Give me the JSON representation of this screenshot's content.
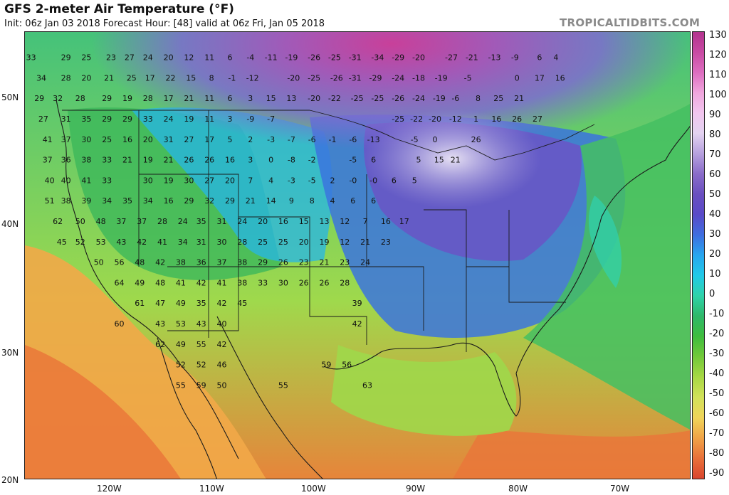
{
  "title": "GFS 2-meter Air Temperature (°F)",
  "subtitle": "Init: 06z Jan 03 2018   Forecast Hour: [48]   valid at 06z Fri, Jan 05 2018",
  "brand": "TROPICALTIDBITS.COM",
  "lat_labels": [
    "50N",
    "40N",
    "30N",
    "20N"
  ],
  "lon_labels": [
    "120W",
    "110W",
    "100W",
    "90W",
    "80W",
    "70W"
  ],
  "colorbar": {
    "labels": [
      "130",
      "120",
      "110",
      "100",
      "90",
      "80",
      "70",
      "60",
      "50",
      "40",
      "30",
      "20",
      "10",
      "0",
      "-10",
      "-20",
      "-30",
      "-40",
      "-50",
      "-60",
      "-70",
      "-80",
      "-90"
    ],
    "colors": [
      "#b3338e",
      "#c84aa3",
      "#dd6ec0",
      "#f0a6dd",
      "#f2c6ef",
      "#e3d2f0",
      "#b6a0de",
      "#8a6cc9",
      "#6a4fc0",
      "#5a4ac8",
      "#3e6ee0",
      "#27a6ef",
      "#21c9e8",
      "#2fd2a9",
      "#2fb86a",
      "#3fbd3e",
      "#72c93a",
      "#a8d844",
      "#d2e15a",
      "#f0d45a",
      "#f0a347",
      "#e8703a",
      "#d9452e"
    ]
  },
  "temperatures": [
    {
      "v": "33",
      "lon": -127.4,
      "lat": 52.8
    },
    {
      "v": "29",
      "lon": -124.0,
      "lat": 52.8
    },
    {
      "v": "25",
      "lon": -122.0,
      "lat": 52.8
    },
    {
      "v": "23",
      "lon": -119.6,
      "lat": 52.8
    },
    {
      "v": "27",
      "lon": -117.8,
      "lat": 52.8
    },
    {
      "v": "24",
      "lon": -116.0,
      "lat": 52.8
    },
    {
      "v": "20",
      "lon": -114.0,
      "lat": 52.8
    },
    {
      "v": "12",
      "lon": -112.0,
      "lat": 52.8
    },
    {
      "v": "11",
      "lon": -110.0,
      "lat": 52.8
    },
    {
      "v": "6",
      "lon": -108.0,
      "lat": 52.8
    },
    {
      "v": "-4",
      "lon": -106.0,
      "lat": 52.8
    },
    {
      "v": "-11",
      "lon": -104.0,
      "lat": 52.8
    },
    {
      "v": "-19",
      "lon": -102.0,
      "lat": 52.8
    },
    {
      "v": "-26",
      "lon": -99.8,
      "lat": 52.8
    },
    {
      "v": "-25",
      "lon": -97.8,
      "lat": 52.8
    },
    {
      "v": "-31",
      "lon": -95.8,
      "lat": 52.8
    },
    {
      "v": "-34",
      "lon": -93.6,
      "lat": 52.8
    },
    {
      "v": "-29",
      "lon": -91.6,
      "lat": 52.8
    },
    {
      "v": "-20",
      "lon": -89.6,
      "lat": 52.8
    },
    {
      "v": "-27",
      "lon": -86.4,
      "lat": 52.8
    },
    {
      "v": "-21",
      "lon": -84.4,
      "lat": 52.8
    },
    {
      "v": "-13",
      "lon": -82.2,
      "lat": 52.8
    },
    {
      "v": "-9",
      "lon": -80.2,
      "lat": 52.8
    },
    {
      "v": "6",
      "lon": -77.8,
      "lat": 52.8
    },
    {
      "v": "4",
      "lon": -76.2,
      "lat": 52.8
    },
    {
      "v": "34",
      "lon": -126.4,
      "lat": 51.2
    },
    {
      "v": "28",
      "lon": -124.0,
      "lat": 51.2
    },
    {
      "v": "20",
      "lon": -122.0,
      "lat": 51.2
    },
    {
      "v": "21",
      "lon": -119.8,
      "lat": 51.2
    },
    {
      "v": "25",
      "lon": -117.6,
      "lat": 51.2
    },
    {
      "v": "17",
      "lon": -115.8,
      "lat": 51.2
    },
    {
      "v": "22",
      "lon": -113.8,
      "lat": 51.2
    },
    {
      "v": "15",
      "lon": -111.8,
      "lat": 51.2
    },
    {
      "v": "8",
      "lon": -109.8,
      "lat": 51.2
    },
    {
      "v": "-1",
      "lon": -107.8,
      "lat": 51.2
    },
    {
      "v": "-12",
      "lon": -105.8,
      "lat": 51.2
    },
    {
      "v": "-20",
      "lon": -101.8,
      "lat": 51.2
    },
    {
      "v": "-25",
      "lon": -99.8,
      "lat": 51.2
    },
    {
      "v": "-26",
      "lon": -97.6,
      "lat": 51.2
    },
    {
      "v": "-31",
      "lon": -95.8,
      "lat": 51.2
    },
    {
      "v": "-29",
      "lon": -93.8,
      "lat": 51.2
    },
    {
      "v": "-24",
      "lon": -91.6,
      "lat": 51.2
    },
    {
      "v": "-18",
      "lon": -89.6,
      "lat": 51.2
    },
    {
      "v": "-19",
      "lon": -87.4,
      "lat": 51.2
    },
    {
      "v": "-5",
      "lon": -84.8,
      "lat": 51.2
    },
    {
      "v": "0",
      "lon": -80.0,
      "lat": 51.2
    },
    {
      "v": "17",
      "lon": -77.8,
      "lat": 51.2
    },
    {
      "v": "16",
      "lon": -75.8,
      "lat": 51.2
    },
    {
      "v": "29",
      "lon": -126.6,
      "lat": 49.6
    },
    {
      "v": "32",
      "lon": -124.8,
      "lat": 49.6
    },
    {
      "v": "28",
      "lon": -122.6,
      "lat": 49.6
    },
    {
      "v": "29",
      "lon": -120.0,
      "lat": 49.6
    },
    {
      "v": "19",
      "lon": -118.0,
      "lat": 49.6
    },
    {
      "v": "28",
      "lon": -116.0,
      "lat": 49.6
    },
    {
      "v": "17",
      "lon": -114.0,
      "lat": 49.6
    },
    {
      "v": "21",
      "lon": -112.0,
      "lat": 49.6
    },
    {
      "v": "11",
      "lon": -110.0,
      "lat": 49.6
    },
    {
      "v": "6",
      "lon": -108.0,
      "lat": 49.6
    },
    {
      "v": "3",
      "lon": -106.0,
      "lat": 49.6
    },
    {
      "v": "15",
      "lon": -104.0,
      "lat": 49.6
    },
    {
      "v": "13",
      "lon": -102.0,
      "lat": 49.6
    },
    {
      "v": "-20",
      "lon": -99.8,
      "lat": 49.6
    },
    {
      "v": "-22",
      "lon": -97.8,
      "lat": 49.6
    },
    {
      "v": "-25",
      "lon": -95.6,
      "lat": 49.6
    },
    {
      "v": "-25",
      "lon": -93.6,
      "lat": 49.6
    },
    {
      "v": "-26",
      "lon": -91.6,
      "lat": 49.6
    },
    {
      "v": "-24",
      "lon": -89.6,
      "lat": 49.6
    },
    {
      "v": "-19",
      "lon": -87.6,
      "lat": 49.6
    },
    {
      "v": "-6",
      "lon": -86.0,
      "lat": 49.6
    },
    {
      "v": "8",
      "lon": -83.8,
      "lat": 49.6
    },
    {
      "v": "25",
      "lon": -81.8,
      "lat": 49.6
    },
    {
      "v": "21",
      "lon": -79.8,
      "lat": 49.6
    },
    {
      "v": "27",
      "lon": -126.2,
      "lat": 48.0
    },
    {
      "v": "31",
      "lon": -124.0,
      "lat": 48.0
    },
    {
      "v": "35",
      "lon": -122.0,
      "lat": 48.0
    },
    {
      "v": "29",
      "lon": -120.0,
      "lat": 48.0
    },
    {
      "v": "29",
      "lon": -118.0,
      "lat": 48.0
    },
    {
      "v": "33",
      "lon": -116.0,
      "lat": 48.0
    },
    {
      "v": "24",
      "lon": -114.0,
      "lat": 48.0
    },
    {
      "v": "19",
      "lon": -112.0,
      "lat": 48.0
    },
    {
      "v": "11",
      "lon": -110.0,
      "lat": 48.0
    },
    {
      "v": "3",
      "lon": -108.0,
      "lat": 48.0
    },
    {
      "v": "-9",
      "lon": -106.0,
      "lat": 48.0
    },
    {
      "v": "-7",
      "lon": -104.0,
      "lat": 48.0
    },
    {
      "v": "-25",
      "lon": -91.6,
      "lat": 48.0
    },
    {
      "v": "-22",
      "lon": -89.8,
      "lat": 48.0
    },
    {
      "v": "-20",
      "lon": -88.0,
      "lat": 48.0
    },
    {
      "v": "-12",
      "lon": -86.0,
      "lat": 48.0
    },
    {
      "v": "1",
      "lon": -84.0,
      "lat": 48.0
    },
    {
      "v": "16",
      "lon": -82.0,
      "lat": 48.0
    },
    {
      "v": "26",
      "lon": -80.0,
      "lat": 48.0
    },
    {
      "v": "27",
      "lon": -78.0,
      "lat": 48.0
    },
    {
      "v": "41",
      "lon": -125.8,
      "lat": 46.4
    },
    {
      "v": "37",
      "lon": -124.0,
      "lat": 46.4
    },
    {
      "v": "30",
      "lon": -122.0,
      "lat": 46.4
    },
    {
      "v": "25",
      "lon": -120.0,
      "lat": 46.4
    },
    {
      "v": "16",
      "lon": -118.0,
      "lat": 46.4
    },
    {
      "v": "20",
      "lon": -116.0,
      "lat": 46.4
    },
    {
      "v": "31",
      "lon": -114.0,
      "lat": 46.4
    },
    {
      "v": "27",
      "lon": -112.0,
      "lat": 46.4
    },
    {
      "v": "17",
      "lon": -110.0,
      "lat": 46.4
    },
    {
      "v": "5",
      "lon": -108.0,
      "lat": 46.4
    },
    {
      "v": "2",
      "lon": -106.0,
      "lat": 46.4
    },
    {
      "v": "-3",
      "lon": -104.0,
      "lat": 46.4
    },
    {
      "v": "-7",
      "lon": -102.0,
      "lat": 46.4
    },
    {
      "v": "-6",
      "lon": -100.0,
      "lat": 46.4
    },
    {
      "v": "-1",
      "lon": -98.0,
      "lat": 46.4
    },
    {
      "v": "-6",
      "lon": -96.0,
      "lat": 46.4
    },
    {
      "v": "-13",
      "lon": -94.0,
      "lat": 46.4
    },
    {
      "v": "-5",
      "lon": -90.0,
      "lat": 46.4
    },
    {
      "v": "0",
      "lon": -88.0,
      "lat": 46.4
    },
    {
      "v": "26",
      "lon": -84.0,
      "lat": 46.4
    },
    {
      "v": "37",
      "lon": -125.8,
      "lat": 44.8
    },
    {
      "v": "36",
      "lon": -124.0,
      "lat": 44.8
    },
    {
      "v": "38",
      "lon": -122.0,
      "lat": 44.8
    },
    {
      "v": "33",
      "lon": -120.0,
      "lat": 44.8
    },
    {
      "v": "21",
      "lon": -118.0,
      "lat": 44.8
    },
    {
      "v": "19",
      "lon": -116.0,
      "lat": 44.8
    },
    {
      "v": "21",
      "lon": -114.0,
      "lat": 44.8
    },
    {
      "v": "26",
      "lon": -112.0,
      "lat": 44.8
    },
    {
      "v": "26",
      "lon": -110.0,
      "lat": 44.8
    },
    {
      "v": "16",
      "lon": -108.0,
      "lat": 44.8
    },
    {
      "v": "3",
      "lon": -106.0,
      "lat": 44.8
    },
    {
      "v": "0",
      "lon": -104.0,
      "lat": 44.8
    },
    {
      "v": "-8",
      "lon": -102.0,
      "lat": 44.8
    },
    {
      "v": "-2",
      "lon": -100.0,
      "lat": 44.8
    },
    {
      "v": "-5",
      "lon": -96.0,
      "lat": 44.8
    },
    {
      "v": "6",
      "lon": -94.0,
      "lat": 44.8
    },
    {
      "v": "5",
      "lon": -89.6,
      "lat": 44.8
    },
    {
      "v": "15",
      "lon": -87.6,
      "lat": 44.8
    },
    {
      "v": "21",
      "lon": -86.0,
      "lat": 44.8
    },
    {
      "v": "40",
      "lon": -125.6,
      "lat": 43.2
    },
    {
      "v": "40",
      "lon": -124.0,
      "lat": 43.2
    },
    {
      "v": "41",
      "lon": -122.0,
      "lat": 43.2
    },
    {
      "v": "33",
      "lon": -120.0,
      "lat": 43.2
    },
    {
      "v": "30",
      "lon": -116.0,
      "lat": 43.2
    },
    {
      "v": "19",
      "lon": -114.0,
      "lat": 43.2
    },
    {
      "v": "30",
      "lon": -112.0,
      "lat": 43.2
    },
    {
      "v": "27",
      "lon": -110.0,
      "lat": 43.2
    },
    {
      "v": "20",
      "lon": -108.0,
      "lat": 43.2
    },
    {
      "v": "7",
      "lon": -106.0,
      "lat": 43.2
    },
    {
      "v": "4",
      "lon": -104.0,
      "lat": 43.2
    },
    {
      "v": "-3",
      "lon": -102.0,
      "lat": 43.2
    },
    {
      "v": "-5",
      "lon": -100.0,
      "lat": 43.2
    },
    {
      "v": "2",
      "lon": -98.0,
      "lat": 43.2
    },
    {
      "v": "-0",
      "lon": -96.0,
      "lat": 43.2
    },
    {
      "v": "-0",
      "lon": -94.0,
      "lat": 43.2
    },
    {
      "v": "6",
      "lon": -92.0,
      "lat": 43.2
    },
    {
      "v": "5",
      "lon": -90.0,
      "lat": 43.2
    },
    {
      "v": "51",
      "lon": -125.6,
      "lat": 41.6
    },
    {
      "v": "38",
      "lon": -124.0,
      "lat": 41.6
    },
    {
      "v": "39",
      "lon": -122.0,
      "lat": 41.6
    },
    {
      "v": "34",
      "lon": -120.0,
      "lat": 41.6
    },
    {
      "v": "35",
      "lon": -118.0,
      "lat": 41.6
    },
    {
      "v": "34",
      "lon": -116.0,
      "lat": 41.6
    },
    {
      "v": "16",
      "lon": -114.0,
      "lat": 41.6
    },
    {
      "v": "29",
      "lon": -112.0,
      "lat": 41.6
    },
    {
      "v": "32",
      "lon": -110.0,
      "lat": 41.6
    },
    {
      "v": "29",
      "lon": -108.0,
      "lat": 41.6
    },
    {
      "v": "21",
      "lon": -106.0,
      "lat": 41.6
    },
    {
      "v": "14",
      "lon": -104.0,
      "lat": 41.6
    },
    {
      "v": "9",
      "lon": -102.0,
      "lat": 41.6
    },
    {
      "v": "8",
      "lon": -100.0,
      "lat": 41.6
    },
    {
      "v": "4",
      "lon": -98.0,
      "lat": 41.6
    },
    {
      "v": "6",
      "lon": -96.0,
      "lat": 41.6
    },
    {
      "v": "6",
      "lon": -94.0,
      "lat": 41.6
    },
    {
      "v": "62",
      "lon": -124.8,
      "lat": 40.0
    },
    {
      "v": "50",
      "lon": -122.6,
      "lat": 40.0
    },
    {
      "v": "48",
      "lon": -120.6,
      "lat": 40.0
    },
    {
      "v": "37",
      "lon": -118.6,
      "lat": 40.0
    },
    {
      "v": "37",
      "lon": -116.6,
      "lat": 40.0
    },
    {
      "v": "28",
      "lon": -114.6,
      "lat": 40.0
    },
    {
      "v": "24",
      "lon": -112.6,
      "lat": 40.0
    },
    {
      "v": "35",
      "lon": -110.8,
      "lat": 40.0
    },
    {
      "v": "31",
      "lon": -108.8,
      "lat": 40.0
    },
    {
      "v": "24",
      "lon": -106.8,
      "lat": 40.0
    },
    {
      "v": "20",
      "lon": -104.8,
      "lat": 40.0
    },
    {
      "v": "16",
      "lon": -102.8,
      "lat": 40.0
    },
    {
      "v": "15",
      "lon": -100.8,
      "lat": 40.0
    },
    {
      "v": "13",
      "lon": -98.8,
      "lat": 40.0
    },
    {
      "v": "12",
      "lon": -96.8,
      "lat": 40.0
    },
    {
      "v": "7",
      "lon": -94.8,
      "lat": 40.0
    },
    {
      "v": "16",
      "lon": -92.8,
      "lat": 40.0
    },
    {
      "v": "17",
      "lon": -91.0,
      "lat": 40.0
    },
    {
      "v": "45",
      "lon": -124.4,
      "lat": 38.4
    },
    {
      "v": "52",
      "lon": -122.6,
      "lat": 38.4
    },
    {
      "v": "53",
      "lon": -120.6,
      "lat": 38.4
    },
    {
      "v": "43",
      "lon": -118.6,
      "lat": 38.4
    },
    {
      "v": "42",
      "lon": -116.6,
      "lat": 38.4
    },
    {
      "v": "41",
      "lon": -114.6,
      "lat": 38.4
    },
    {
      "v": "34",
      "lon": -112.6,
      "lat": 38.4
    },
    {
      "v": "31",
      "lon": -110.8,
      "lat": 38.4
    },
    {
      "v": "30",
      "lon": -108.8,
      "lat": 38.4
    },
    {
      "v": "28",
      "lon": -106.8,
      "lat": 38.4
    },
    {
      "v": "25",
      "lon": -104.8,
      "lat": 38.4
    },
    {
      "v": "25",
      "lon": -102.8,
      "lat": 38.4
    },
    {
      "v": "20",
      "lon": -100.8,
      "lat": 38.4
    },
    {
      "v": "19",
      "lon": -98.8,
      "lat": 38.4
    },
    {
      "v": "12",
      "lon": -96.8,
      "lat": 38.4
    },
    {
      "v": "21",
      "lon": -94.8,
      "lat": 38.4
    },
    {
      "v": "23",
      "lon": -92.8,
      "lat": 38.4
    },
    {
      "v": "50",
      "lon": -120.8,
      "lat": 36.8
    },
    {
      "v": "56",
      "lon": -118.8,
      "lat": 36.8
    },
    {
      "v": "48",
      "lon": -116.8,
      "lat": 36.8
    },
    {
      "v": "42",
      "lon": -114.8,
      "lat": 36.8
    },
    {
      "v": "38",
      "lon": -112.8,
      "lat": 36.8
    },
    {
      "v": "36",
      "lon": -110.8,
      "lat": 36.8
    },
    {
      "v": "37",
      "lon": -108.8,
      "lat": 36.8
    },
    {
      "v": "38",
      "lon": -106.8,
      "lat": 36.8
    },
    {
      "v": "29",
      "lon": -104.8,
      "lat": 36.8
    },
    {
      "v": "26",
      "lon": -102.8,
      "lat": 36.8
    },
    {
      "v": "23",
      "lon": -100.8,
      "lat": 36.8
    },
    {
      "v": "21",
      "lon": -98.8,
      "lat": 36.8
    },
    {
      "v": "23",
      "lon": -96.8,
      "lat": 36.8
    },
    {
      "v": "24",
      "lon": -94.8,
      "lat": 36.8
    },
    {
      "v": "64",
      "lon": -118.8,
      "lat": 35.2
    },
    {
      "v": "49",
      "lon": -116.8,
      "lat": 35.2
    },
    {
      "v": "48",
      "lon": -114.8,
      "lat": 35.2
    },
    {
      "v": "41",
      "lon": -112.8,
      "lat": 35.2
    },
    {
      "v": "42",
      "lon": -110.8,
      "lat": 35.2
    },
    {
      "v": "41",
      "lon": -108.8,
      "lat": 35.2
    },
    {
      "v": "38",
      "lon": -106.8,
      "lat": 35.2
    },
    {
      "v": "33",
      "lon": -104.8,
      "lat": 35.2
    },
    {
      "v": "30",
      "lon": -102.8,
      "lat": 35.2
    },
    {
      "v": "26",
      "lon": -100.8,
      "lat": 35.2
    },
    {
      "v": "26",
      "lon": -98.8,
      "lat": 35.2
    },
    {
      "v": "28",
      "lon": -96.8,
      "lat": 35.2
    },
    {
      "v": "61",
      "lon": -116.8,
      "lat": 33.6
    },
    {
      "v": "47",
      "lon": -114.8,
      "lat": 33.6
    },
    {
      "v": "49",
      "lon": -112.8,
      "lat": 33.6
    },
    {
      "v": "35",
      "lon": -110.8,
      "lat": 33.6
    },
    {
      "v": "42",
      "lon": -108.8,
      "lat": 33.6
    },
    {
      "v": "45",
      "lon": -106.8,
      "lat": 33.6
    },
    {
      "v": "39",
      "lon": -95.6,
      "lat": 33.6
    },
    {
      "v": "60",
      "lon": -118.8,
      "lat": 32.0
    },
    {
      "v": "43",
      "lon": -114.8,
      "lat": 32.0
    },
    {
      "v": "53",
      "lon": -112.8,
      "lat": 32.0
    },
    {
      "v": "43",
      "lon": -110.8,
      "lat": 32.0
    },
    {
      "v": "40",
      "lon": -108.8,
      "lat": 32.0
    },
    {
      "v": "42",
      "lon": -95.6,
      "lat": 32.0
    },
    {
      "v": "62",
      "lon": -114.8,
      "lat": 30.4
    },
    {
      "v": "49",
      "lon": -112.8,
      "lat": 30.4
    },
    {
      "v": "55",
      "lon": -110.8,
      "lat": 30.4
    },
    {
      "v": "42",
      "lon": -108.8,
      "lat": 30.4
    },
    {
      "v": "52",
      "lon": -112.8,
      "lat": 28.8
    },
    {
      "v": "52",
      "lon": -110.8,
      "lat": 28.8
    },
    {
      "v": "46",
      "lon": -108.8,
      "lat": 28.8
    },
    {
      "v": "59",
      "lon": -98.6,
      "lat": 28.8
    },
    {
      "v": "56",
      "lon": -96.6,
      "lat": 28.8
    },
    {
      "v": "55",
      "lon": -112.8,
      "lat": 27.2
    },
    {
      "v": "59",
      "lon": -110.8,
      "lat": 27.2
    },
    {
      "v": "50",
      "lon": -108.8,
      "lat": 27.2
    },
    {
      "v": "55",
      "lon": -102.8,
      "lat": 27.2
    },
    {
      "v": "63",
      "lon": -94.6,
      "lat": 27.2
    }
  ]
}
